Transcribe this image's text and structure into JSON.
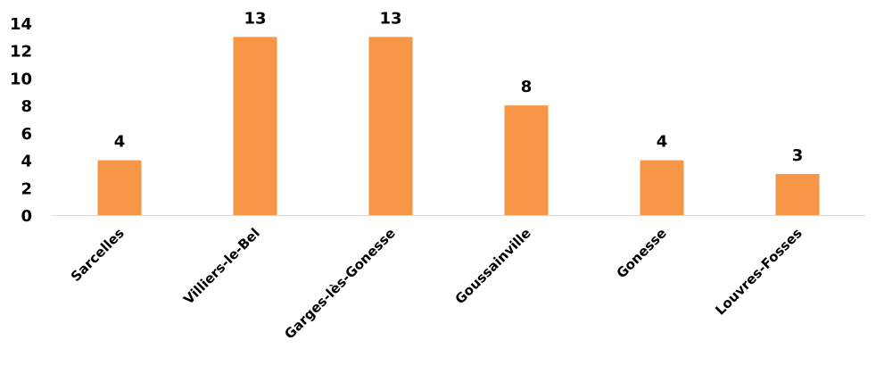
{
  "chart_data": {
    "type": "bar",
    "categories": [
      "Sarcelles",
      "Villiers-le-Bel",
      "Garges-lès-Gonesse",
      "Goussainville",
      "Gonesse",
      "Louvres-Fosses"
    ],
    "values": [
      4,
      13,
      13,
      8,
      4,
      3
    ],
    "ylim": [
      0,
      14
    ],
    "yticks": [
      0,
      2,
      4,
      6,
      8,
      10,
      12,
      14
    ],
    "title": "",
    "xlabel": "",
    "ylabel": "",
    "grid": false,
    "legend": "none",
    "bar_color": "#F79646",
    "axis_color": "#D9D9D9",
    "data_labels": true
  }
}
